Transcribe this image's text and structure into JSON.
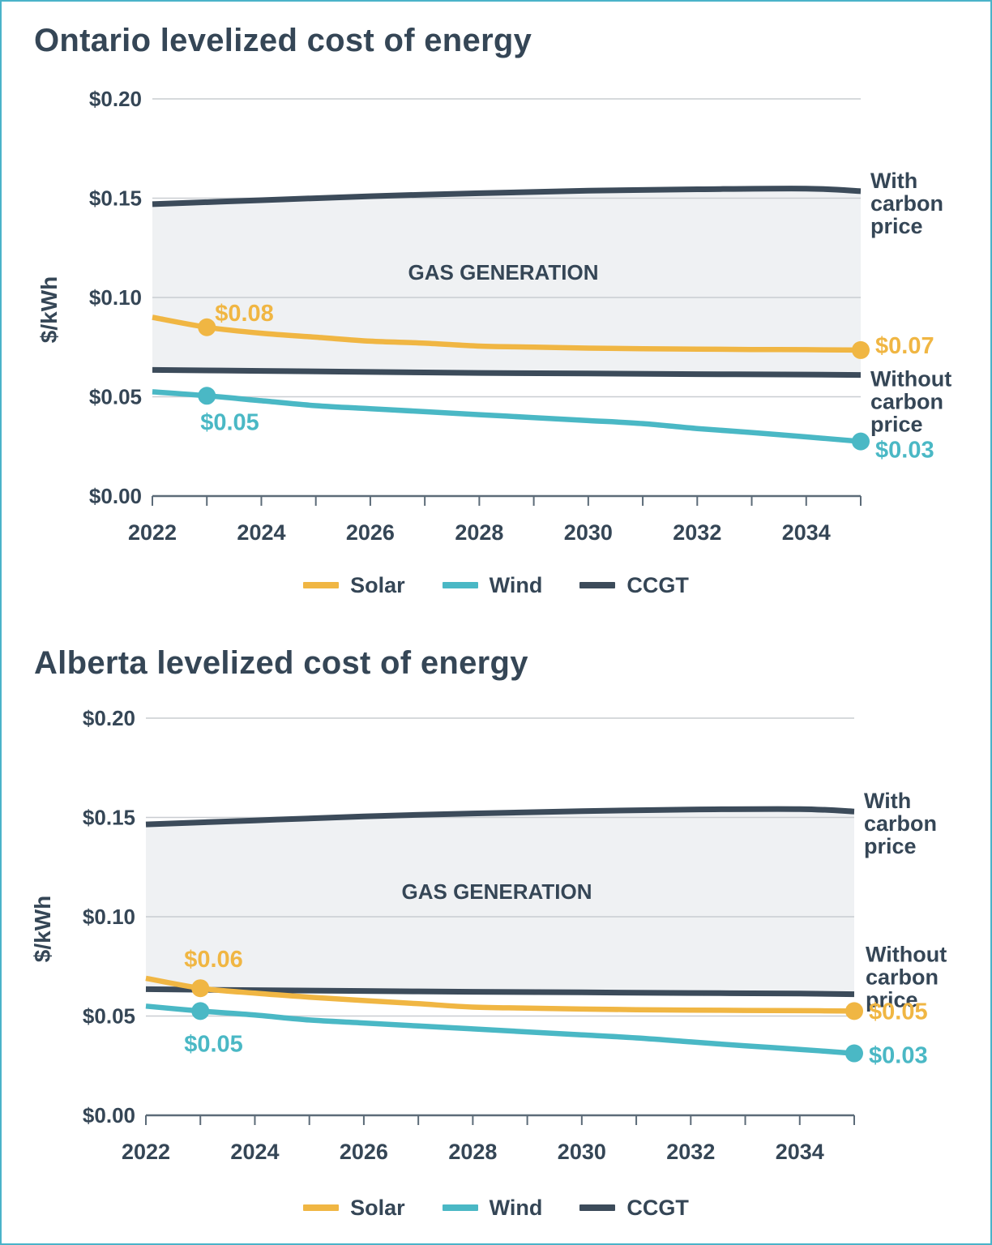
{
  "chart_data": [
    {
      "type": "line",
      "title": "Ontario levelized cost of energy",
      "ylabel": "$/kWh",
      "xlim": [
        2022,
        2035
      ],
      "ylim": [
        0,
        0.2
      ],
      "x_ticks": [
        2022,
        2024,
        2026,
        2028,
        2030,
        2032,
        2034
      ],
      "y_ticks": [
        0,
        0.05,
        0.1,
        0.15,
        0.2
      ],
      "y_tick_labels": [
        "$0.00",
        "$0.05",
        "$0.10",
        "$0.15",
        "$0.20"
      ],
      "grid": true,
      "legend_position": "bottom",
      "band_label": "GAS GENERATION",
      "series": [
        {
          "name": "Solar",
          "color": "#f0b643",
          "x": [
            2022,
            2023,
            2024,
            2025,
            2026,
            2027,
            2028,
            2029,
            2030,
            2031,
            2032,
            2033,
            2034,
            2035
          ],
          "values": [
            0.09,
            0.085,
            0.082,
            0.08,
            0.078,
            0.077,
            0.0755,
            0.075,
            0.0745,
            0.0742,
            0.074,
            0.0738,
            0.0737,
            0.0735
          ],
          "markers": [
            {
              "x": 2023,
              "value": 0.085,
              "label": "$0.08"
            },
            {
              "x": 2035,
              "value": 0.0735,
              "label": "$0.07"
            }
          ]
        },
        {
          "name": "Wind",
          "color": "#4ab8c5",
          "x": [
            2022,
            2023,
            2024,
            2025,
            2026,
            2027,
            2028,
            2029,
            2030,
            2031,
            2032,
            2033,
            2034,
            2035
          ],
          "values": [
            0.0525,
            0.0505,
            0.048,
            0.0455,
            0.044,
            0.0425,
            0.041,
            0.0395,
            0.038,
            0.0365,
            0.034,
            0.032,
            0.0298,
            0.0275
          ],
          "markers": [
            {
              "x": 2023,
              "value": 0.0505,
              "label": "$0.05"
            },
            {
              "x": 2035,
              "value": 0.0275,
              "label": "$0.03"
            }
          ]
        },
        {
          "name": "CCGT",
          "color": "#3c4b5a",
          "lines": [
            {
              "label": "With carbon price",
              "x": [
                2022,
                2024,
                2026,
                2028,
                2030,
                2032,
                2034,
                2035
              ],
              "values": [
                0.147,
                0.149,
                0.151,
                0.1525,
                0.1538,
                0.1545,
                0.1548,
                0.1535
              ]
            },
            {
              "label": "Without carbon price",
              "x": [
                2022,
                2024,
                2026,
                2028,
                2030,
                2032,
                2034,
                2035
              ],
              "values": [
                0.0635,
                0.063,
                0.0625,
                0.062,
                0.0617,
                0.0614,
                0.0612,
                0.061
              ]
            }
          ]
        }
      ]
    },
    {
      "type": "line",
      "title": "Alberta levelized cost of energy",
      "ylabel": "$/kWh",
      "xlim": [
        2022,
        2035
      ],
      "ylim": [
        0,
        0.2
      ],
      "x_ticks": [
        2022,
        2024,
        2026,
        2028,
        2030,
        2032,
        2034
      ],
      "y_ticks": [
        0,
        0.05,
        0.1,
        0.15,
        0.2
      ],
      "y_tick_labels": [
        "$0.00",
        "$0.05",
        "$0.10",
        "$0.15",
        "$0.20"
      ],
      "grid": true,
      "legend_position": "bottom",
      "band_label": "GAS GENERATION",
      "series": [
        {
          "name": "Solar",
          "color": "#f0b643",
          "x": [
            2022,
            2023,
            2024,
            2025,
            2026,
            2027,
            2028,
            2029,
            2030,
            2031,
            2032,
            2033,
            2034,
            2035
          ],
          "values": [
            0.069,
            0.064,
            0.0615,
            0.0595,
            0.0578,
            0.0562,
            0.0545,
            0.054,
            0.0535,
            0.0532,
            0.053,
            0.0528,
            0.0527,
            0.0525
          ],
          "markers": [
            {
              "x": 2023,
              "value": 0.064,
              "label": "$0.06"
            },
            {
              "x": 2035,
              "value": 0.0525,
              "label": "$0.05"
            }
          ]
        },
        {
          "name": "Wind",
          "color": "#4ab8c5",
          "x": [
            2022,
            2023,
            2024,
            2025,
            2026,
            2027,
            2028,
            2029,
            2030,
            2031,
            2032,
            2033,
            2034,
            2035
          ],
          "values": [
            0.055,
            0.0525,
            0.0505,
            0.048,
            0.0465,
            0.045,
            0.0435,
            0.042,
            0.0405,
            0.039,
            0.037,
            0.035,
            0.0332,
            0.0312
          ],
          "markers": [
            {
              "x": 2023,
              "value": 0.0525,
              "label": "$0.05"
            },
            {
              "x": 2035,
              "value": 0.0312,
              "label": "$0.03"
            }
          ]
        },
        {
          "name": "CCGT",
          "color": "#3c4b5a",
          "lines": [
            {
              "label": "With carbon price",
              "x": [
                2022,
                2024,
                2026,
                2028,
                2030,
                2032,
                2034,
                2035
              ],
              "values": [
                0.1465,
                0.1485,
                0.1505,
                0.152,
                0.1532,
                0.154,
                0.1542,
                0.153
              ]
            },
            {
              "label": "Without carbon price",
              "x": [
                2022,
                2024,
                2026,
                2028,
                2030,
                2032,
                2034,
                2035
              ],
              "values": [
                0.0635,
                0.063,
                0.0626,
                0.0622,
                0.0619,
                0.0616,
                0.0613,
                0.061
              ]
            }
          ]
        }
      ]
    }
  ],
  "legend_labels": [
    "Solar",
    "Wind",
    "CCGT"
  ]
}
